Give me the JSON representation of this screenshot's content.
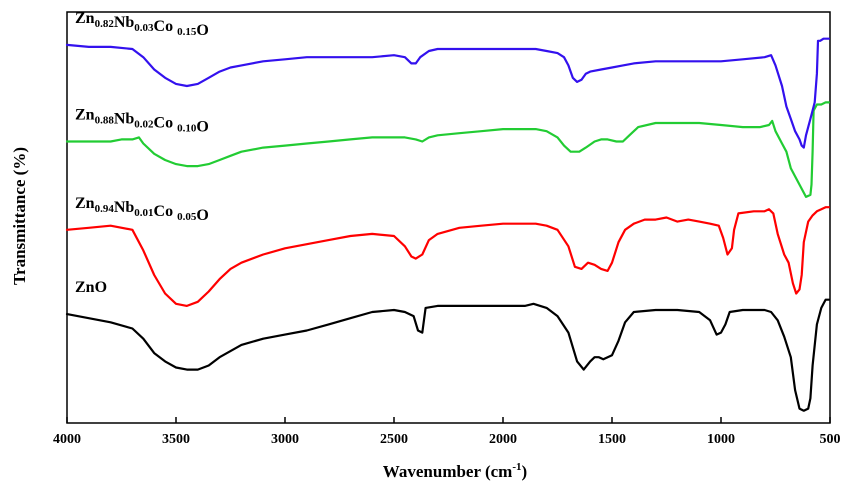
{
  "chart_data": {
    "type": "line",
    "title": "",
    "xlabel": "Wavenumber (cm",
    "xlabel_sup": "-1",
    "xlabel_end": ")",
    "ylabel": "Transmittance (%)",
    "xlim": [
      4000,
      500
    ],
    "x_reversed": true,
    "ylim": [
      0,
      100
    ],
    "y_ticks_shown": false,
    "grid": false,
    "legend": "none",
    "x_ticks": [
      4000,
      3500,
      3000,
      2500,
      2000,
      1500,
      1000,
      500
    ],
    "x_tick_labels": [
      "4000",
      "3500",
      "3000",
      "2500",
      "2000",
      "1500",
      "1000",
      "500"
    ],
    "series": [
      {
        "name": "ZnO",
        "color": "#000000",
        "label_parts": [
          {
            "t": "ZnO",
            "sub": false
          }
        ],
        "points": [
          [
            4000,
            26.5
          ],
          [
            3900,
            25.5
          ],
          [
            3800,
            24.5
          ],
          [
            3700,
            23
          ],
          [
            3650,
            20.5
          ],
          [
            3600,
            17
          ],
          [
            3550,
            15
          ],
          [
            3500,
            13.5
          ],
          [
            3450,
            13
          ],
          [
            3400,
            13
          ],
          [
            3350,
            14
          ],
          [
            3300,
            16
          ],
          [
            3250,
            17.5
          ],
          [
            3200,
            19
          ],
          [
            3100,
            20.5
          ],
          [
            3000,
            21.5
          ],
          [
            2900,
            22.5
          ],
          [
            2800,
            24
          ],
          [
            2700,
            25.5
          ],
          [
            2600,
            27
          ],
          [
            2500,
            27.5
          ],
          [
            2450,
            27
          ],
          [
            2410,
            26
          ],
          [
            2390,
            22.5
          ],
          [
            2370,
            22
          ],
          [
            2355,
            28
          ],
          [
            2300,
            28.5
          ],
          [
            2200,
            28.5
          ],
          [
            2100,
            28.5
          ],
          [
            2000,
            28.5
          ],
          [
            1900,
            28.5
          ],
          [
            1860,
            29
          ],
          [
            1800,
            28
          ],
          [
            1750,
            26
          ],
          [
            1700,
            22
          ],
          [
            1660,
            15
          ],
          [
            1630,
            13
          ],
          [
            1600,
            15
          ],
          [
            1580,
            16
          ],
          [
            1560,
            16
          ],
          [
            1540,
            15.5
          ],
          [
            1500,
            16.5
          ],
          [
            1470,
            20
          ],
          [
            1440,
            24.5
          ],
          [
            1400,
            27
          ],
          [
            1300,
            27.5
          ],
          [
            1200,
            27.5
          ],
          [
            1100,
            27
          ],
          [
            1050,
            25
          ],
          [
            1020,
            21.5
          ],
          [
            1000,
            22
          ],
          [
            980,
            24
          ],
          [
            960,
            27
          ],
          [
            900,
            27.5
          ],
          [
            850,
            27.5
          ],
          [
            800,
            27.5
          ],
          [
            770,
            27
          ],
          [
            740,
            25
          ],
          [
            710,
            21
          ],
          [
            680,
            16
          ],
          [
            660,
            8
          ],
          [
            640,
            3.5
          ],
          [
            620,
            3
          ],
          [
            600,
            3.5
          ],
          [
            590,
            6
          ],
          [
            580,
            14
          ],
          [
            560,
            24
          ],
          [
            540,
            28
          ],
          [
            520,
            30
          ],
          [
            505,
            30
          ]
        ]
      },
      {
        "name": "Zn0.94Nb0.01Co0.05O",
        "color": "#ff0000",
        "label_parts": [
          {
            "t": "Zn",
            "sub": false
          },
          {
            "t": "0.94",
            "sub": true
          },
          {
            "t": "Nb",
            "sub": false
          },
          {
            "t": "0.01",
            "sub": true
          },
          {
            "t": "Co ",
            "sub": false
          },
          {
            "t": "0.05",
            "sub": true
          },
          {
            "t": "O",
            "sub": false
          }
        ],
        "points": [
          [
            4000,
            47
          ],
          [
            3900,
            47.5
          ],
          [
            3800,
            48
          ],
          [
            3700,
            47
          ],
          [
            3650,
            42
          ],
          [
            3600,
            36
          ],
          [
            3550,
            31.5
          ],
          [
            3500,
            29
          ],
          [
            3450,
            28.5
          ],
          [
            3400,
            29.5
          ],
          [
            3350,
            32
          ],
          [
            3300,
            35
          ],
          [
            3250,
            37.5
          ],
          [
            3200,
            39
          ],
          [
            3100,
            41
          ],
          [
            3000,
            42.5
          ],
          [
            2900,
            43.5
          ],
          [
            2800,
            44.5
          ],
          [
            2700,
            45.5
          ],
          [
            2600,
            46
          ],
          [
            2500,
            45.5
          ],
          [
            2450,
            43
          ],
          [
            2420,
            40.5
          ],
          [
            2400,
            40
          ],
          [
            2370,
            41
          ],
          [
            2340,
            44.5
          ],
          [
            2300,
            46
          ],
          [
            2200,
            47.5
          ],
          [
            2100,
            48
          ],
          [
            2000,
            48.5
          ],
          [
            1900,
            48.5
          ],
          [
            1850,
            48.5
          ],
          [
            1800,
            48
          ],
          [
            1750,
            47
          ],
          [
            1700,
            43
          ],
          [
            1670,
            38
          ],
          [
            1640,
            37.5
          ],
          [
            1610,
            39
          ],
          [
            1580,
            38.5
          ],
          [
            1550,
            37.5
          ],
          [
            1520,
            37
          ],
          [
            1500,
            39
          ],
          [
            1470,
            44
          ],
          [
            1440,
            47
          ],
          [
            1400,
            48.5
          ],
          [
            1350,
            49.5
          ],
          [
            1300,
            49.5
          ],
          [
            1250,
            50
          ],
          [
            1200,
            49
          ],
          [
            1150,
            49.5
          ],
          [
            1100,
            49
          ],
          [
            1050,
            48.5
          ],
          [
            1010,
            48
          ],
          [
            990,
            45
          ],
          [
            970,
            41
          ],
          [
            950,
            42.5
          ],
          [
            940,
            47
          ],
          [
            920,
            51
          ],
          [
            850,
            51.5
          ],
          [
            800,
            51.5
          ],
          [
            780,
            52
          ],
          [
            760,
            51
          ],
          [
            740,
            46
          ],
          [
            710,
            41
          ],
          [
            690,
            39
          ],
          [
            670,
            34
          ],
          [
            655,
            31.5
          ],
          [
            640,
            32.5
          ],
          [
            630,
            36
          ],
          [
            620,
            44
          ],
          [
            600,
            49
          ],
          [
            580,
            50.5
          ],
          [
            560,
            51.5
          ],
          [
            540,
            52
          ],
          [
            520,
            52.5
          ],
          [
            505,
            52.5
          ]
        ]
      },
      {
        "name": "Zn0.88Nb0.02Co0.10O",
        "color": "#22cc33",
        "label_parts": [
          {
            "t": "Zn",
            "sub": false
          },
          {
            "t": "0.88",
            "sub": true
          },
          {
            "t": "Nb",
            "sub": false
          },
          {
            "t": "0.02",
            "sub": true
          },
          {
            "t": "Co ",
            "sub": false
          },
          {
            "t": "0.10",
            "sub": true
          },
          {
            "t": "O",
            "sub": false
          }
        ],
        "points": [
          [
            4000,
            68.5
          ],
          [
            3900,
            68.5
          ],
          [
            3800,
            68.5
          ],
          [
            3750,
            69
          ],
          [
            3700,
            69
          ],
          [
            3670,
            69.5
          ],
          [
            3650,
            68
          ],
          [
            3600,
            65.5
          ],
          [
            3550,
            64
          ],
          [
            3500,
            63
          ],
          [
            3450,
            62.5
          ],
          [
            3400,
            62.5
          ],
          [
            3350,
            63
          ],
          [
            3300,
            64
          ],
          [
            3250,
            65
          ],
          [
            3200,
            66
          ],
          [
            3100,
            67
          ],
          [
            3000,
            67.5
          ],
          [
            2900,
            68
          ],
          [
            2800,
            68.5
          ],
          [
            2700,
            69
          ],
          [
            2600,
            69.5
          ],
          [
            2500,
            69.5
          ],
          [
            2450,
            69.5
          ],
          [
            2400,
            69
          ],
          [
            2370,
            68.5
          ],
          [
            2340,
            69.5
          ],
          [
            2300,
            70
          ],
          [
            2200,
            70.5
          ],
          [
            2100,
            71
          ],
          [
            2000,
            71.5
          ],
          [
            1950,
            71.5
          ],
          [
            1900,
            71.5
          ],
          [
            1850,
            71.5
          ],
          [
            1800,
            71
          ],
          [
            1750,
            69.5
          ],
          [
            1720,
            67.5
          ],
          [
            1690,
            66
          ],
          [
            1650,
            66
          ],
          [
            1620,
            67
          ],
          [
            1580,
            68.5
          ],
          [
            1550,
            69
          ],
          [
            1520,
            69
          ],
          [
            1480,
            68.5
          ],
          [
            1450,
            68.5
          ],
          [
            1420,
            70
          ],
          [
            1380,
            72
          ],
          [
            1300,
            73
          ],
          [
            1200,
            73
          ],
          [
            1100,
            73
          ],
          [
            1000,
            72.5
          ],
          [
            900,
            72
          ],
          [
            820,
            72
          ],
          [
            780,
            72.5
          ],
          [
            765,
            73.5
          ],
          [
            750,
            71
          ],
          [
            720,
            68
          ],
          [
            700,
            66
          ],
          [
            680,
            62
          ],
          [
            660,
            60
          ],
          [
            640,
            58
          ],
          [
            620,
            56
          ],
          [
            610,
            55
          ],
          [
            590,
            55.5
          ],
          [
            585,
            58
          ],
          [
            580,
            66
          ],
          [
            575,
            76
          ],
          [
            560,
            77.5
          ],
          [
            540,
            77.5
          ],
          [
            520,
            78
          ],
          [
            505,
            78
          ]
        ]
      },
      {
        "name": "Zn0.82Nb0.03Co0.15O",
        "color": "#3311ee",
        "label_parts": [
          {
            "t": "Zn",
            "sub": false
          },
          {
            "t": "0.82",
            "sub": true
          },
          {
            "t": "Nb",
            "sub": false
          },
          {
            "t": "0.03",
            "sub": true
          },
          {
            "t": "Co ",
            "sub": false
          },
          {
            "t": "0.15",
            "sub": true
          },
          {
            "t": "O",
            "sub": false
          }
        ],
        "points": [
          [
            4000,
            92
          ],
          [
            3900,
            91.5
          ],
          [
            3800,
            91.5
          ],
          [
            3700,
            91
          ],
          [
            3650,
            89
          ],
          [
            3600,
            86
          ],
          [
            3550,
            84
          ],
          [
            3500,
            82.5
          ],
          [
            3450,
            82
          ],
          [
            3400,
            82.5
          ],
          [
            3350,
            84
          ],
          [
            3300,
            85.5
          ],
          [
            3250,
            86.5
          ],
          [
            3200,
            87
          ],
          [
            3100,
            88
          ],
          [
            3000,
            88.5
          ],
          [
            2900,
            89
          ],
          [
            2800,
            89
          ],
          [
            2700,
            89
          ],
          [
            2600,
            89
          ],
          [
            2500,
            89.5
          ],
          [
            2450,
            89
          ],
          [
            2420,
            87.5
          ],
          [
            2400,
            87.5
          ],
          [
            2380,
            89
          ],
          [
            2340,
            90.5
          ],
          [
            2300,
            91
          ],
          [
            2200,
            91
          ],
          [
            2100,
            91
          ],
          [
            2000,
            91
          ],
          [
            1900,
            91
          ],
          [
            1850,
            91
          ],
          [
            1800,
            90.5
          ],
          [
            1750,
            90
          ],
          [
            1720,
            89
          ],
          [
            1700,
            87
          ],
          [
            1680,
            84
          ],
          [
            1660,
            83
          ],
          [
            1640,
            83.5
          ],
          [
            1620,
            85
          ],
          [
            1600,
            85.5
          ],
          [
            1550,
            86
          ],
          [
            1500,
            86.5
          ],
          [
            1450,
            87
          ],
          [
            1400,
            87.5
          ],
          [
            1300,
            88
          ],
          [
            1200,
            88
          ],
          [
            1100,
            88
          ],
          [
            1000,
            88
          ],
          [
            900,
            88.5
          ],
          [
            800,
            89
          ],
          [
            770,
            89.5
          ],
          [
            750,
            87
          ],
          [
            720,
            82
          ],
          [
            700,
            77
          ],
          [
            680,
            74
          ],
          [
            660,
            71
          ],
          [
            640,
            69
          ],
          [
            630,
            67.5
          ],
          [
            620,
            67
          ],
          [
            610,
            70
          ],
          [
            590,
            74
          ],
          [
            570,
            78
          ],
          [
            560,
            85
          ],
          [
            555,
            93
          ],
          [
            545,
            93
          ],
          [
            530,
            93.5
          ],
          [
            515,
            93.5
          ],
          [
            505,
            93.5
          ]
        ]
      }
    ]
  }
}
